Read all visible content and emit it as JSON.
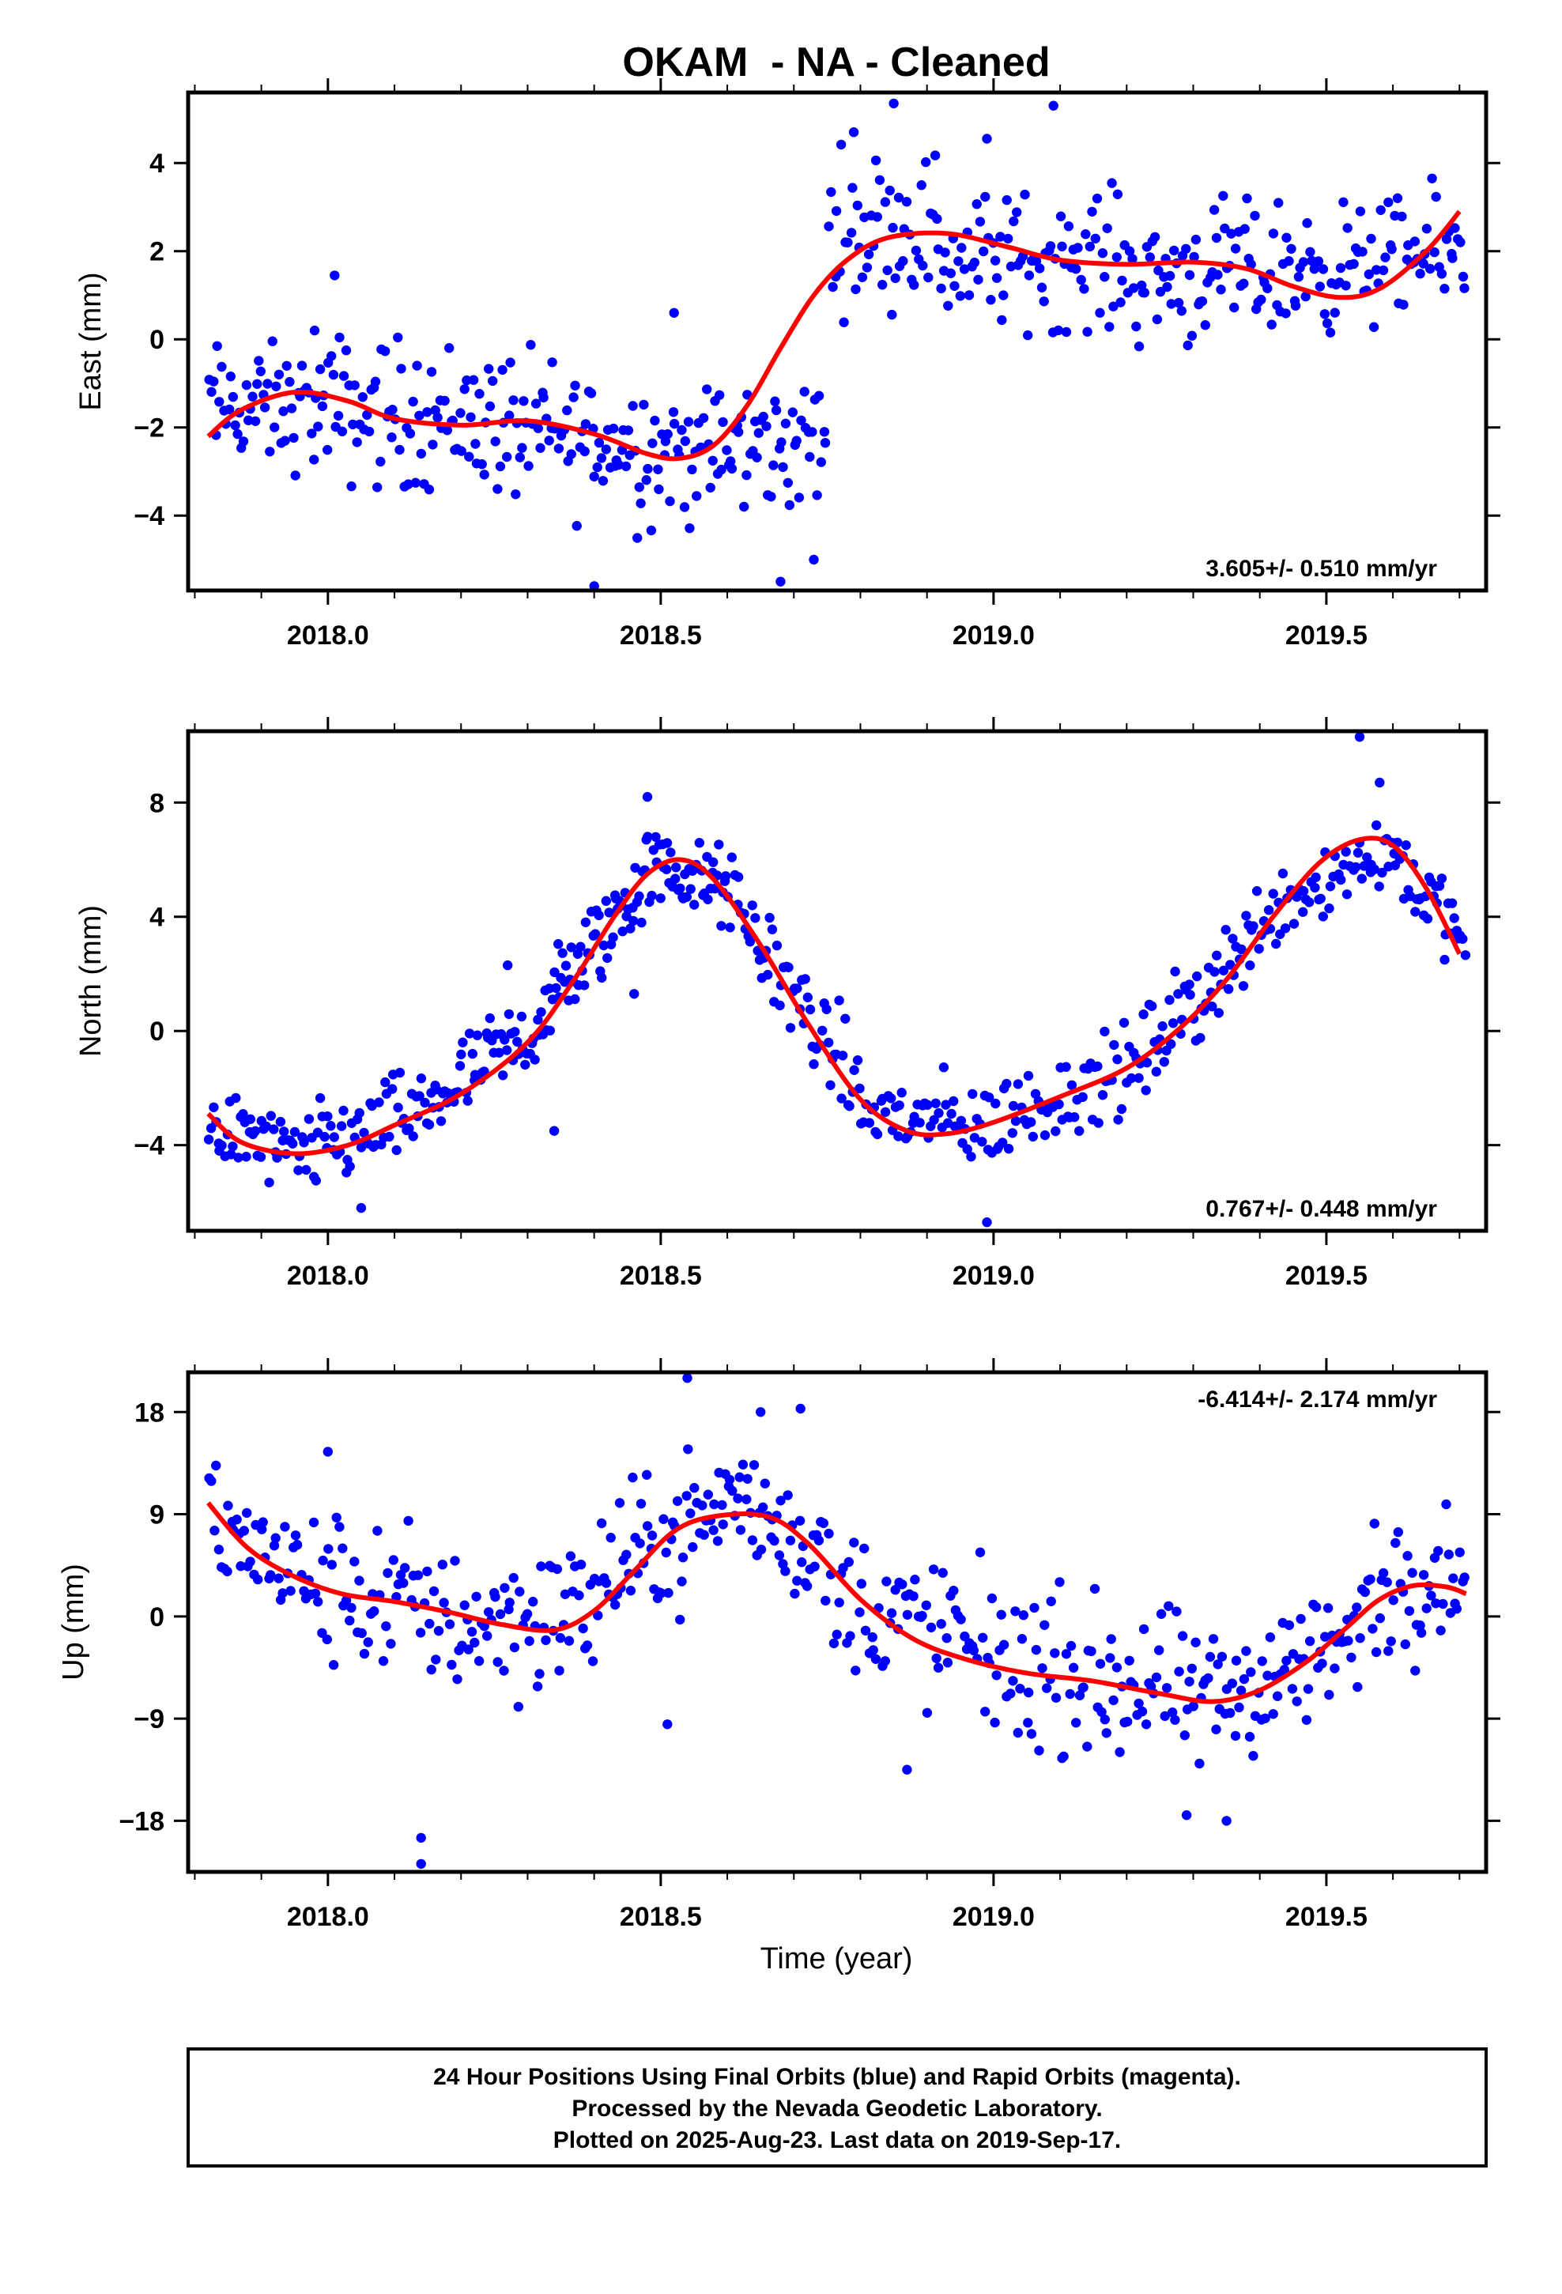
{
  "title": "OKAM  - NA - Cleaned",
  "xlabel": "Time (year)",
  "footer": {
    "line1": "24 Hour Positions Using Final Orbits (blue) and Rapid Orbits (magenta).",
    "line2": "Processed by the Nevada Geodetic Laboratory.",
    "line3": "Plotted on 2025-Aug-23. Last data on 2019-Sep-17."
  },
  "colors": {
    "points": "#0000ff",
    "fit": "#ff0000",
    "frame": "#000000"
  },
  "chart_data": [
    {
      "type": "scatter",
      "ylabel": "East (mm)",
      "rate_label": "3.605+/- 0.510 mm/yr",
      "xlim": [
        2017.79,
        2019.74
      ],
      "ylim": [
        -5.7,
        5.6
      ],
      "xticks": [
        2018.0,
        2018.5,
        2019.0,
        2019.5
      ],
      "xtick_labels": [
        "2018.0",
        "2018.5",
        "2019.0",
        "2019.5"
      ],
      "yticks": [
        -4,
        -2,
        0,
        2,
        4
      ],
      "ytick_labels": [
        "−4",
        "−2",
        "0",
        "2",
        "4"
      ],
      "fit_curve": {
        "x": [
          2017.82,
          2017.87,
          2017.95,
          2018.03,
          2018.1,
          2018.2,
          2018.3,
          2018.4,
          2018.48,
          2018.53,
          2018.58,
          2018.63,
          2018.68,
          2018.73,
          2018.78,
          2018.84,
          2018.93,
          2019.02,
          2019.1,
          2019.2,
          2019.3,
          2019.38,
          2019.45,
          2019.52,
          2019.58,
          2019.65,
          2019.7
        ],
        "y": [
          -2.2,
          -1.6,
          -1.2,
          -1.4,
          -1.8,
          -1.95,
          -1.85,
          -2.15,
          -2.6,
          -2.7,
          -2.4,
          -1.5,
          -0.2,
          1.0,
          1.8,
          2.3,
          2.4,
          2.1,
          1.8,
          1.7,
          1.75,
          1.6,
          1.2,
          0.95,
          1.15,
          2.0,
          2.9
        ]
      },
      "points": {
        "segments": [
          {
            "x0": 2017.82,
            "x1": 2018.0,
            "y0": -1.5,
            "y1": -1.6,
            "spread": 0.9,
            "n": 55
          },
          {
            "x0": 2018.0,
            "x1": 2018.25,
            "y0": -1.6,
            "y1": -1.8,
            "spread": 1.1,
            "n": 75
          },
          {
            "x0": 2018.25,
            "x1": 2018.55,
            "y0": -2.0,
            "y1": -2.6,
            "spread": 1.1,
            "n": 90
          },
          {
            "x0": 2018.55,
            "x1": 2018.75,
            "y0": -2.6,
            "y1": -2.3,
            "spread": 1.0,
            "n": 60
          },
          {
            "x0": 2018.75,
            "x1": 2018.92,
            "y0": 2.5,
            "y1": 2.6,
            "spread": 1.1,
            "n": 50
          },
          {
            "x0": 2018.92,
            "x1": 2019.2,
            "y0": 1.8,
            "y1": 1.8,
            "spread": 1.0,
            "n": 80
          },
          {
            "x0": 2019.2,
            "x1": 2019.5,
            "y0": 1.4,
            "y1": 1.6,
            "spread": 1.0,
            "n": 90
          },
          {
            "x0": 2019.5,
            "x1": 2019.71,
            "y0": 1.6,
            "y1": 2.0,
            "spread": 0.9,
            "n": 60
          }
        ],
        "outliers": [
          [
            2018.85,
            5.35
          ],
          [
            2019.09,
            5.3
          ],
          [
            2018.4,
            -5.6
          ],
          [
            2018.68,
            -5.5
          ],
          [
            2018.73,
            -5.0
          ],
          [
            2018.01,
            1.45
          ],
          [
            2017.98,
            0.2
          ],
          [
            2018.52,
            0.6
          ],
          [
            2018.79,
            4.7
          ],
          [
            2018.99,
            4.55
          ]
        ]
      }
    },
    {
      "type": "scatter",
      "ylabel": "North (mm)",
      "rate_label": "0.767+/- 0.448 mm/yr",
      "xlim": [
        2017.79,
        2019.74
      ],
      "ylim": [
        -7.0,
        10.5
      ],
      "xticks": [
        2018.0,
        2018.5,
        2019.0,
        2019.5
      ],
      "xtick_labels": [
        "2018.0",
        "2018.5",
        "2019.0",
        "2019.5"
      ],
      "yticks": [
        -4,
        0,
        4,
        8
      ],
      "ytick_labels": [
        "−4",
        "0",
        "4",
        "8"
      ],
      "fit_curve": {
        "x": [
          2017.82,
          2017.87,
          2017.95,
          2018.03,
          2018.1,
          2018.2,
          2018.3,
          2018.37,
          2018.43,
          2018.48,
          2018.53,
          2018.58,
          2018.65,
          2018.72,
          2018.8,
          2018.87,
          2018.93,
          2019.0,
          2019.1,
          2019.2,
          2019.28,
          2019.35,
          2019.42,
          2019.49,
          2019.55,
          2019.6,
          2019.65,
          2019.7
        ],
        "y": [
          -2.9,
          -3.9,
          -4.3,
          -4.0,
          -3.3,
          -2.2,
          -0.4,
          1.8,
          4.0,
          5.5,
          6.0,
          5.3,
          3.0,
          0.3,
          -2.4,
          -3.5,
          -3.6,
          -3.2,
          -2.3,
          -1.3,
          0.1,
          1.8,
          4.0,
          5.9,
          6.7,
          6.5,
          5.0,
          2.7
        ]
      },
      "points": {
        "segments": [
          {
            "x0": 2017.82,
            "x1": 2017.97,
            "y0": -3.2,
            "y1": -4.6,
            "spread": 0.9,
            "n": 45
          },
          {
            "x0": 2017.97,
            "x1": 2018.15,
            "y0": -4.2,
            "y1": -2.8,
            "spread": 1.0,
            "n": 55
          },
          {
            "x0": 2018.15,
            "x1": 2018.32,
            "y0": -2.6,
            "y1": 0.2,
            "spread": 1.0,
            "n": 55
          },
          {
            "x0": 2018.32,
            "x1": 2018.48,
            "y0": 0.6,
            "y1": 5.4,
            "spread": 1.1,
            "n": 60
          },
          {
            "x0": 2018.48,
            "x1": 2018.6,
            "y0": 5.8,
            "y1": 5.0,
            "spread": 0.9,
            "n": 45
          },
          {
            "x0": 2018.6,
            "x1": 2018.8,
            "y0": 4.8,
            "y1": -2.2,
            "spread": 1.1,
            "n": 60
          },
          {
            "x0": 2018.8,
            "x1": 2019.0,
            "y0": -2.8,
            "y1": -3.4,
            "spread": 1.0,
            "n": 55
          },
          {
            "x0": 2019.0,
            "x1": 2019.22,
            "y0": -3.2,
            "y1": -1.2,
            "spread": 1.0,
            "n": 60
          },
          {
            "x0": 2019.22,
            "x1": 2019.4,
            "y0": -1.0,
            "y1": 3.5,
            "spread": 1.1,
            "n": 55
          },
          {
            "x0": 2019.4,
            "x1": 2019.6,
            "y0": 4.2,
            "y1": 6.5,
            "spread": 1.0,
            "n": 55
          },
          {
            "x0": 2019.6,
            "x1": 2019.71,
            "y0": 6.2,
            "y1": 3.0,
            "spread": 0.9,
            "n": 35
          }
        ],
        "outliers": [
          [
            2019.55,
            10.3
          ],
          [
            2019.58,
            8.7
          ],
          [
            2018.48,
            8.2
          ],
          [
            2018.99,
            -6.7
          ],
          [
            2018.05,
            -6.2
          ],
          [
            2018.46,
            1.3
          ],
          [
            2018.27,
            2.3
          ],
          [
            2018.34,
            -3.5
          ]
        ]
      }
    },
    {
      "type": "scatter",
      "ylabel": "Up (mm)",
      "rate_label": "-6.414+/- 2.174 mm/yr",
      "xlim": [
        2017.79,
        2019.74
      ],
      "ylim": [
        -22.5,
        21.5
      ],
      "xticks": [
        2018.0,
        2018.5,
        2019.0,
        2019.5
      ],
      "xtick_labels": [
        "2018.0",
        "2018.5",
        "2019.0",
        "2019.5"
      ],
      "yticks": [
        -18,
        -9,
        0,
        9,
        18
      ],
      "ytick_labels": [
        "−18",
        "−9",
        "0",
        "9",
        "18"
      ],
      "fit_curve": {
        "x": [
          2017.82,
          2017.88,
          2017.95,
          2018.02,
          2018.1,
          2018.18,
          2018.26,
          2018.34,
          2018.4,
          2018.46,
          2018.52,
          2018.58,
          2018.66,
          2018.72,
          2018.8,
          2018.88,
          2018.96,
          2019.05,
          2019.15,
          2019.25,
          2019.33,
          2019.4,
          2019.47,
          2019.53,
          2019.58,
          2019.63,
          2019.68,
          2019.71
        ],
        "y": [
          10.0,
          6.0,
          3.5,
          2.0,
          1.3,
          0.4,
          -0.7,
          -1.2,
          0.5,
          4.0,
          7.5,
          8.8,
          8.8,
          6.5,
          1.5,
          -2.0,
          -3.8,
          -5.0,
          -5.7,
          -6.8,
          -7.5,
          -6.5,
          -4.0,
          -1.0,
          1.5,
          2.7,
          2.6,
          2.0
        ]
      },
      "points": {
        "segments": [
          {
            "x0": 2017.82,
            "x1": 2017.95,
            "y0": 8.0,
            "y1": 4.0,
            "spread": 3.5,
            "n": 35
          },
          {
            "x0": 2017.95,
            "x1": 2018.2,
            "y0": 3.0,
            "y1": 0.0,
            "spread": 4.5,
            "n": 65
          },
          {
            "x0": 2018.2,
            "x1": 2018.4,
            "y0": -0.5,
            "y1": 0.5,
            "spread": 4.5,
            "n": 55
          },
          {
            "x0": 2018.4,
            "x1": 2018.6,
            "y0": 3.0,
            "y1": 10.0,
            "spread": 4.0,
            "n": 60
          },
          {
            "x0": 2018.6,
            "x1": 2018.75,
            "y0": 11.0,
            "y1": 5.0,
            "spread": 3.5,
            "n": 45
          },
          {
            "x0": 2018.75,
            "x1": 2019.0,
            "y0": 2.0,
            "y1": -3.0,
            "spread": 4.5,
            "n": 65
          },
          {
            "x0": 2019.0,
            "x1": 2019.3,
            "y0": -4.0,
            "y1": -7.0,
            "spread": 4.5,
            "n": 80
          },
          {
            "x0": 2019.3,
            "x1": 2019.55,
            "y0": -8.0,
            "y1": -2.0,
            "spread": 4.0,
            "n": 70
          },
          {
            "x0": 2019.55,
            "x1": 2019.71,
            "y0": 1.0,
            "y1": 5.0,
            "spread": 4.0,
            "n": 45
          }
        ],
        "outliers": [
          [
            2018.54,
            21.0
          ],
          [
            2018.65,
            18.0
          ],
          [
            2018.71,
            18.3
          ],
          [
            2018.14,
            -19.5
          ],
          [
            2018.14,
            -21.8
          ],
          [
            2018.87,
            -13.5
          ],
          [
            2019.29,
            -17.5
          ],
          [
            2019.35,
            -18.0
          ],
          [
            2018.51,
            -9.5
          ],
          [
            2018.0,
            14.5
          ]
        ]
      }
    }
  ]
}
